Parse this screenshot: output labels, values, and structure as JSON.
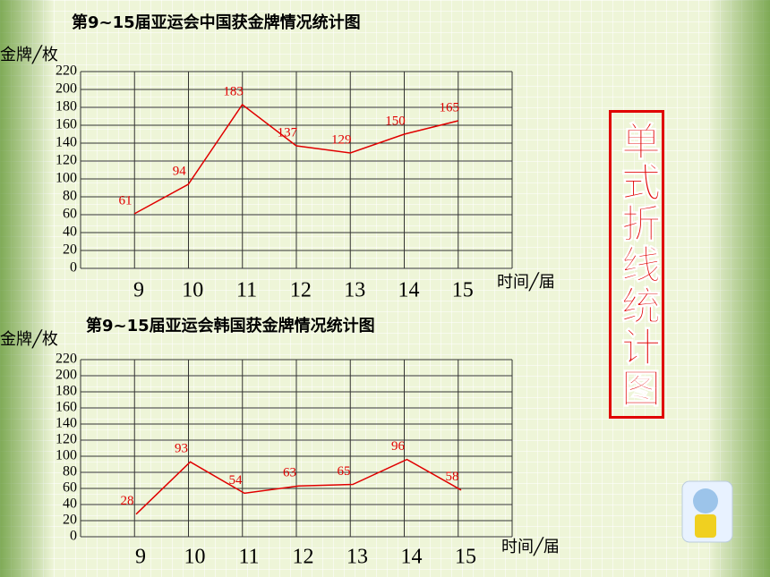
{
  "chart_data": [
    {
      "type": "line",
      "title": "第9~15届亚运会中国获金牌情况统计图",
      "y_label": "金牌╱枚",
      "x_label": "时间╱届",
      "categories": [
        "9",
        "10",
        "11",
        "12",
        "13",
        "14",
        "15"
      ],
      "series": [
        {
          "color": "#e00000",
          "values": [
            61,
            94,
            183,
            137,
            129,
            150,
            165
          ]
        }
      ],
      "ylim": [
        0,
        220
      ],
      "yticks": [
        0,
        20,
        40,
        60,
        80,
        100,
        120,
        140,
        160,
        180,
        200,
        220
      ],
      "grid": true
    },
    {
      "type": "line",
      "title": "第9~15届亚运会韩国获金牌情况统计图",
      "y_label": "金牌╱枚",
      "x_label": "时间╱届",
      "categories": [
        "9",
        "10",
        "11",
        "12",
        "13",
        "14",
        "15"
      ],
      "series": [
        {
          "color": "#e00000",
          "values": [
            28,
            93,
            54,
            63,
            65,
            96,
            58
          ]
        }
      ],
      "ylim": [
        0,
        220
      ],
      "yticks": [
        0,
        20,
        40,
        60,
        80,
        100,
        120,
        140,
        160,
        180,
        200,
        220
      ],
      "grid": true
    }
  ],
  "side_label": "单式折线统计图"
}
